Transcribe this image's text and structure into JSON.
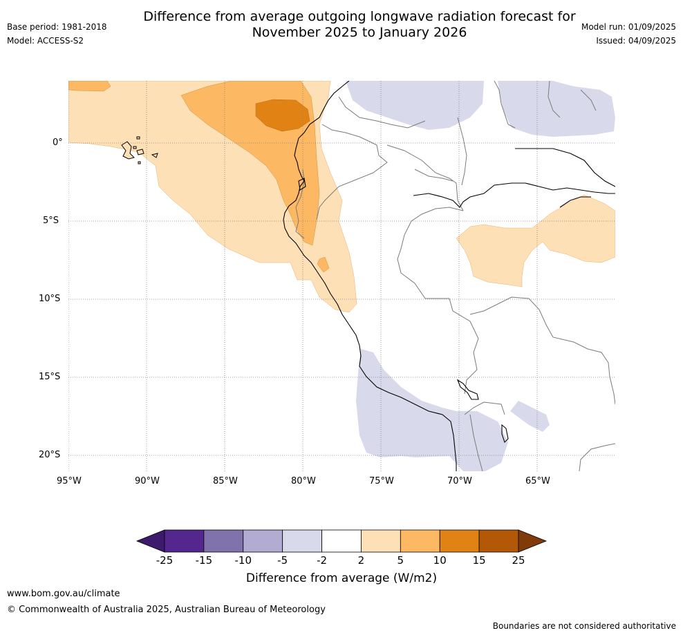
{
  "header": {
    "title_line1": "Difference from average outgoing longwave radiation forecast for",
    "title_line2": "November 2025 to January 2026",
    "base_period": "Base period: 1981-2018",
    "model": "Model: ACCESS-S2",
    "model_run": "Model run: 01/09/2025",
    "issued": "Issued: 04/09/2025"
  },
  "map": {
    "lat_labels": [
      "0°",
      "5°S",
      "10°S",
      "15°S",
      "20°S"
    ],
    "lon_labels": [
      "95°W",
      "90°W",
      "85°W",
      "80°W",
      "75°W",
      "70°W",
      "65°W"
    ],
    "lat_values": [
      0,
      -5,
      -10,
      -15,
      -20
    ],
    "lon_values": [
      -95,
      -90,
      -85,
      -80,
      -75,
      -70,
      -65
    ],
    "extent": {
      "lon_min": -95,
      "lon_max": -60,
      "lat_min": -21,
      "lat_max": 4
    }
  },
  "colorbar": {
    "ticks": [
      "-25",
      "-15",
      "-10",
      "-5",
      "-2",
      "2",
      "5",
      "10",
      "15",
      "25"
    ],
    "colors": [
      "#3d1a6b",
      "#54278f",
      "#8073ac",
      "#b2abd2",
      "#d8daeb",
      "#ffffff",
      "#fee0b6",
      "#fdb863",
      "#e08214",
      "#b35806",
      "#7f3b08"
    ],
    "label": "Difference from average (W/m2)"
  },
  "footer": {
    "url": "www.bom.gov.au/climate",
    "copyright": "© Commonwealth of Australia 2025, Australian Bureau of Meteorology",
    "disclaimer": "Boundaries are not considered authoritative"
  }
}
